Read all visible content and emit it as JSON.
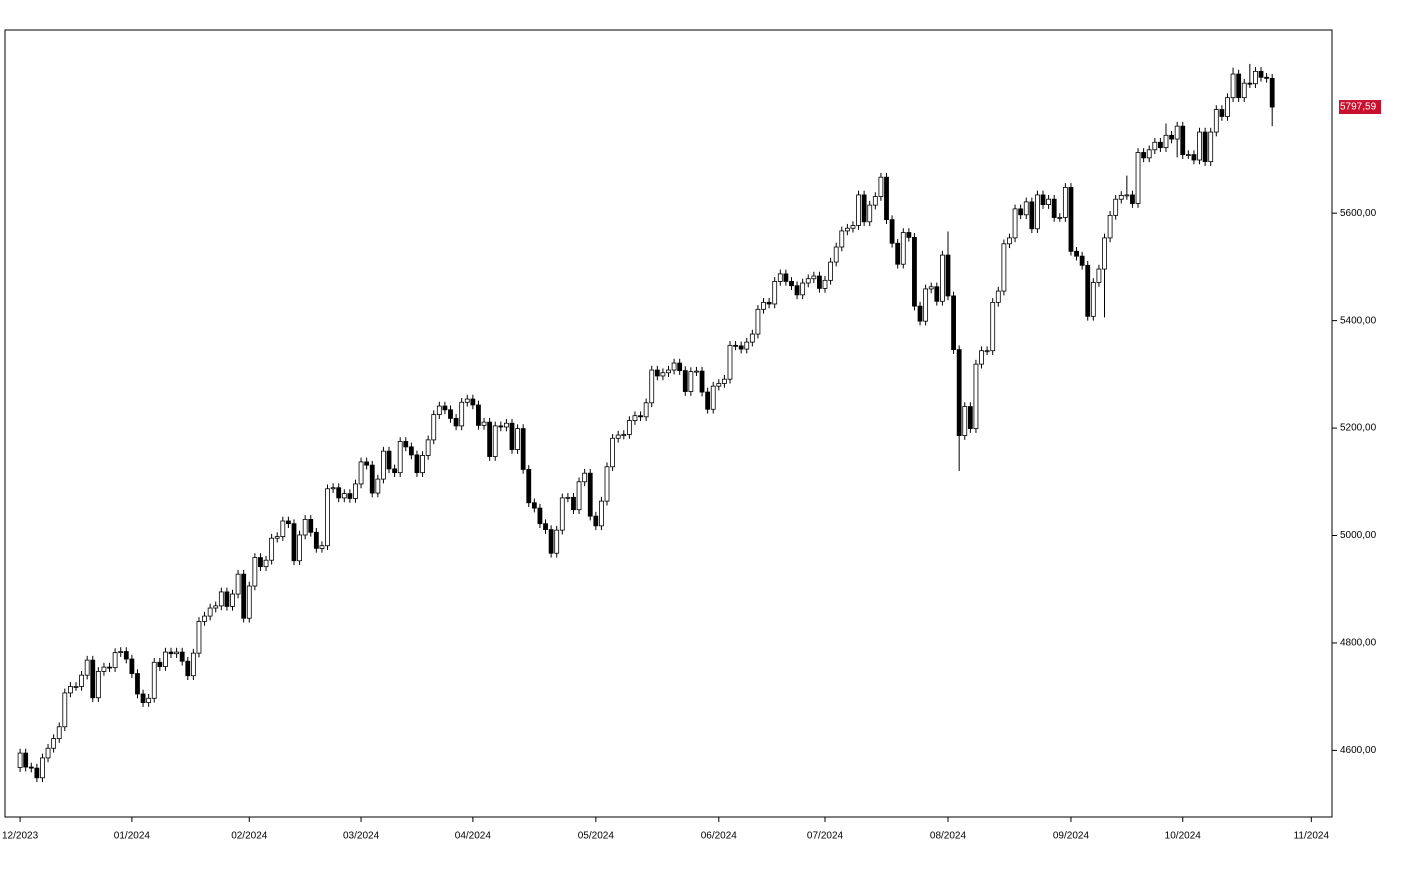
{
  "chart_data": {
    "type": "candlestick",
    "x": [
      0,
      1,
      2,
      3,
      4,
      5,
      6,
      7,
      8,
      9,
      10,
      11,
      12,
      13,
      14,
      15,
      16,
      17,
      18,
      19,
      20,
      21,
      22,
      23,
      24,
      25,
      26,
      27,
      28,
      29,
      30,
      31,
      32,
      33,
      34,
      35,
      36,
      37,
      38,
      39,
      40,
      41,
      42,
      43,
      44,
      45,
      46,
      47,
      48,
      49,
      50,
      51,
      52,
      53,
      54,
      55,
      56,
      57,
      58,
      59,
      60,
      61,
      62,
      63,
      64,
      65,
      66,
      67,
      68,
      69,
      70,
      71,
      72,
      73,
      74,
      75,
      76,
      77,
      78,
      79,
      80,
      81,
      82,
      83,
      84,
      85,
      86,
      87,
      88,
      89,
      90,
      91,
      92,
      93,
      94,
      95,
      96,
      97,
      98,
      99,
      100,
      101,
      102,
      103,
      104,
      105,
      106,
      107,
      108,
      109,
      110,
      111,
      112,
      113,
      114,
      115,
      116,
      117,
      118,
      119,
      120,
      121,
      122,
      123,
      124,
      125,
      126,
      127,
      128,
      129,
      130,
      131,
      132,
      133,
      134,
      135,
      136,
      137,
      138,
      139,
      140,
      141,
      142,
      143,
      144,
      145,
      146,
      147,
      148,
      149,
      150,
      151,
      152,
      153,
      154,
      155,
      156,
      157,
      158,
      159,
      160,
      161,
      162,
      163,
      164,
      165,
      166,
      167,
      168,
      169,
      170,
      171,
      172,
      173,
      174,
      175,
      176,
      177,
      178,
      179,
      180,
      181,
      182,
      183,
      184,
      185,
      186,
      187,
      188,
      189,
      190,
      191,
      192,
      193,
      194,
      195,
      196,
      197,
      198,
      199,
      200,
      201,
      202,
      203,
      204,
      205,
      206,
      207,
      208,
      209,
      210,
      211,
      212,
      213,
      214,
      215,
      216,
      217,
      218,
      219,
      220,
      221,
      222,
      223,
      224
    ],
    "open": [
      4568,
      4595,
      4569,
      4567,
      4549,
      4586,
      4604,
      4622,
      4644,
      4707,
      4719,
      4719,
      4740,
      4768,
      4698,
      4747,
      4755,
      4754,
      4782,
      4784,
      4770,
      4743,
      4705,
      4689,
      4697,
      4764,
      4756,
      4783,
      4780,
      4783,
      4766,
      4739,
      4781,
      4840,
      4850,
      4865,
      4869,
      4895,
      4868,
      4891,
      4928,
      4846,
      4906,
      4959,
      4942,
      4954,
      4995,
      4998,
      5027,
      5022,
      4953,
      5001,
      5030,
      5006,
      4976,
      4981,
      5087,
      5089,
      5070,
      5078,
      5069,
      5096,
      5137,
      5131,
      5079,
      5105,
      5157,
      5124,
      5117,
      5175,
      5165,
      5150,
      5117,
      5149,
      5178,
      5225,
      5241,
      5234,
      5218,
      5204,
      5248,
      5254,
      5243,
      5205,
      5211,
      5147,
      5204,
      5202,
      5209,
      5160,
      5199,
      5123,
      5061,
      5051,
      5022,
      5011,
      4967,
      5010,
      5070,
      5071,
      5048,
      5100,
      5116,
      5036,
      5018,
      5064,
      5128,
      5181,
      5187,
      5188,
      5214,
      5223,
      5221,
      5247,
      5308,
      5297,
      5303,
      5308,
      5321,
      5307,
      5268,
      5305,
      5306,
      5267,
      5235,
      5278,
      5283,
      5291,
      5354,
      5353,
      5347,
      5360,
      5375,
      5421,
      5434,
      5431,
      5473,
      5487,
      5473,
      5465,
      5448,
      5470,
      5478,
      5483,
      5460,
      5475,
      5509,
      5537,
      5567,
      5572,
      5577,
      5634,
      5584,
      5615,
      5631,
      5667,
      5588,
      5544,
      5505,
      5564,
      5555,
      5427,
      5399,
      5459,
      5463,
      5436,
      5522,
      5446,
      5346,
      5186,
      5240,
      5199,
      5319,
      5344,
      5344,
      5434,
      5455,
      5543,
      5554,
      5608,
      5597,
      5621,
      5571,
      5634,
      5616,
      5626,
      5592,
      5592,
      5648,
      5529,
      5520,
      5503,
      5408,
      5471,
      5496,
      5554,
      5596,
      5626,
      5633,
      5634,
      5618,
      5713,
      5703,
      5718,
      5732,
      5722,
      5745,
      5738,
      5762,
      5709,
      5709,
      5699,
      5751,
      5696,
      5751,
      5793,
      5780,
      5815,
      5859,
      5815,
      5842,
      5841,
      5864,
      5853,
      5851
    ],
    "high": [
      4603,
      4603,
      4577,
      4575,
      4594,
      4612,
      4630,
      4652,
      4715,
      4727,
      4727,
      4748,
      4776,
      4776,
      4755,
      4763,
      4763,
      4790,
      4792,
      4792,
      4778,
      4751,
      4713,
      4705,
      4772,
      4772,
      4791,
      4791,
      4791,
      4791,
      4774,
      4789,
      4848,
      4858,
      4873,
      4877,
      4903,
      4903,
      4899,
      4936,
      4936,
      4914,
      4967,
      4967,
      4962,
      5003,
      5006,
      5035,
      5035,
      5030,
      5009,
      5038,
      5038,
      5014,
      4989,
      5095,
      5097,
      5097,
      5086,
      5086,
      5104,
      5145,
      5145,
      5139,
      5113,
      5165,
      5165,
      5132,
      5183,
      5183,
      5173,
      5158,
      5157,
      5186,
      5233,
      5249,
      5249,
      5242,
      5226,
      5256,
      5262,
      5262,
      5251,
      5219,
      5219,
      5212,
      5212,
      5217,
      5217,
      5207,
      5207,
      5131,
      5069,
      5059,
      5030,
      5019,
      5018,
      5078,
      5079,
      5079,
      5108,
      5124,
      5124,
      5044,
      5072,
      5136,
      5189,
      5195,
      5196,
      5222,
      5231,
      5231,
      5255,
      5316,
      5316,
      5311,
      5316,
      5329,
      5329,
      5315,
      5313,
      5314,
      5314,
      5275,
      5286,
      5291,
      5299,
      5362,
      5362,
      5361,
      5368,
      5383,
      5429,
      5442,
      5442,
      5481,
      5495,
      5495,
      5481,
      5473,
      5478,
      5486,
      5491,
      5491,
      5483,
      5517,
      5545,
      5575,
      5580,
      5585,
      5642,
      5642,
      5623,
      5639,
      5675,
      5675,
      5596,
      5552,
      5572,
      5572,
      5563,
      5435,
      5467,
      5471,
      5471,
      5530,
      5566,
      5454,
      5354,
      5248,
      5248,
      5327,
      5352,
      5352,
      5442,
      5463,
      5551,
      5562,
      5616,
      5616,
      5629,
      5629,
      5642,
      5642,
      5634,
      5634,
      5600,
      5656,
      5656,
      5537,
      5528,
      5511,
      5479,
      5504,
      5562,
      5604,
      5634,
      5641,
      5670,
      5642,
      5721,
      5721,
      5726,
      5740,
      5740,
      5767,
      5753,
      5770,
      5770,
      5717,
      5717,
      5759,
      5759,
      5759,
      5801,
      5801,
      5823,
      5871,
      5867,
      5850,
      5878,
      5872,
      5872,
      5861,
      5859
    ],
    "low": [
      4560,
      4561,
      4559,
      4541,
      4541,
      4578,
      4596,
      4614,
      4636,
      4699,
      4711,
      4711,
      4732,
      4690,
      4690,
      4739,
      4746,
      4746,
      4774,
      4762,
      4735,
      4697,
      4681,
      4681,
      4689,
      4748,
      4748,
      4772,
      4772,
      4758,
      4731,
      4731,
      4773,
      4832,
      4842,
      4857,
      4861,
      4860,
      4860,
      4883,
      4838,
      4838,
      4898,
      4934,
      4934,
      4946,
      4987,
      4990,
      5014,
      4945,
      4945,
      4993,
      4998,
      4968,
      4968,
      4973,
      5079,
      5062,
      5062,
      5061,
      5061,
      5088,
      5123,
      5071,
      5071,
      5097,
      5116,
      5109,
      5109,
      5157,
      5142,
      5109,
      5109,
      5141,
      5170,
      5217,
      5226,
      5210,
      5196,
      5196,
      5240,
      5235,
      5197,
      5197,
      5139,
      5139,
      5194,
      5194,
      5152,
      5152,
      5115,
      5053,
      5043,
      5014,
      5003,
      4959,
      4959,
      5002,
      5062,
      5040,
      5040,
      5092,
      5028,
      5010,
      5010,
      5056,
      5120,
      5173,
      5179,
      5180,
      5206,
      5213,
      5213,
      5239,
      5289,
      5289,
      5295,
      5300,
      5299,
      5260,
      5260,
      5297,
      5259,
      5227,
      5227,
      5270,
      5275,
      5283,
      5345,
      5339,
      5339,
      5352,
      5367,
      5413,
      5423,
      5423,
      5465,
      5465,
      5457,
      5440,
      5440,
      5462,
      5470,
      5452,
      5452,
      5467,
      5501,
      5529,
      5559,
      5564,
      5569,
      5576,
      5576,
      5607,
      5623,
      5580,
      5536,
      5497,
      5497,
      5547,
      5419,
      5391,
      5391,
      5451,
      5428,
      5428,
      5438,
      5338,
      5120,
      5178,
      5191,
      5191,
      5311,
      5336,
      5336,
      5426,
      5447,
      5535,
      5546,
      5589,
      5589,
      5563,
      5563,
      5608,
      5608,
      5584,
      5584,
      5584,
      5521,
      5512,
      5495,
      5400,
      5400,
      5463,
      5406,
      5546,
      5588,
      5618,
      5625,
      5610,
      5610,
      5695,
      5695,
      5710,
      5714,
      5714,
      5730,
      5704,
      5701,
      5701,
      5691,
      5691,
      5688,
      5688,
      5743,
      5772,
      5772,
      5807,
      5807,
      5807,
      5833,
      5833,
      5845,
      5843,
      5762
    ],
    "close": [
      4595,
      4569,
      4567,
      4549,
      4586,
      4604,
      4622,
      4644,
      4707,
      4719,
      4719,
      4740,
      4768,
      4698,
      4747,
      4755,
      4754,
      4782,
      4784,
      4770,
      4743,
      4705,
      4689,
      4697,
      4764,
      4756,
      4783,
      4780,
      4783,
      4766,
      4739,
      4781,
      4840,
      4850,
      4865,
      4869,
      4895,
      4868,
      4891,
      4928,
      4846,
      4906,
      4959,
      4942,
      4954,
      4995,
      4998,
      5027,
      5022,
      4953,
      5001,
      5030,
      5006,
      4976,
      4981,
      5087,
      5089,
      5070,
      5078,
      5069,
      5096,
      5137,
      5131,
      5079,
      5105,
      5157,
      5124,
      5117,
      5175,
      5165,
      5150,
      5117,
      5149,
      5178,
      5225,
      5241,
      5234,
      5218,
      5204,
      5248,
      5254,
      5243,
      5205,
      5211,
      5147,
      5204,
      5202,
      5209,
      5160,
      5199,
      5123,
      5061,
      5051,
      5022,
      5011,
      4967,
      5010,
      5070,
      5071,
      5048,
      5100,
      5116,
      5036,
      5018,
      5064,
      5128,
      5181,
      5187,
      5188,
      5214,
      5223,
      5221,
      5247,
      5308,
      5297,
      5303,
      5308,
      5321,
      5307,
      5268,
      5305,
      5306,
      5267,
      5235,
      5278,
      5283,
      5291,
      5354,
      5353,
      5347,
      5360,
      5375,
      5421,
      5434,
      5431,
      5473,
      5487,
      5473,
      5465,
      5448,
      5470,
      5478,
      5483,
      5460,
      5475,
      5509,
      5537,
      5567,
      5572,
      5577,
      5634,
      5584,
      5615,
      5631,
      5667,
      5588,
      5544,
      5505,
      5564,
      5555,
      5427,
      5399,
      5459,
      5463,
      5436,
      5522,
      5446,
      5346,
      5186,
      5240,
      5199,
      5319,
      5344,
      5344,
      5434,
      5455,
      5543,
      5554,
      5608,
      5597,
      5621,
      5571,
      5634,
      5616,
      5626,
      5592,
      5592,
      5648,
      5529,
      5520,
      5503,
      5408,
      5471,
      5496,
      5554,
      5596,
      5626,
      5633,
      5634,
      5618,
      5713,
      5703,
      5718,
      5732,
      5722,
      5745,
      5738,
      5762,
      5709,
      5709,
      5699,
      5751,
      5696,
      5751,
      5793,
      5780,
      5815,
      5859,
      5815,
      5842,
      5841,
      5864,
      5853,
      5851,
      5797.59
    ],
    "up_color": "#ffffff",
    "down_color": "#000000",
    "last_price": {
      "value": 5797.59,
      "label": "5797,59"
    },
    "last_price_color": "#c8102e",
    "xlim": [
      -2.7,
      234.7
    ],
    "xticks": [
      {
        "value": 0,
        "label": "12/2023"
      },
      {
        "value": 20,
        "label": "01/2024"
      },
      {
        "value": 41,
        "label": "02/2024"
      },
      {
        "value": 61,
        "label": "03/2024"
      },
      {
        "value": 81,
        "label": "04/2024"
      },
      {
        "value": 103,
        "label": "05/2024"
      },
      {
        "value": 125,
        "label": "06/2024"
      },
      {
        "value": 144,
        "label": "07/2024"
      },
      {
        "value": 166,
        "label": "08/2024"
      },
      {
        "value": 188,
        "label": "09/2024"
      },
      {
        "value": 208,
        "label": "10/2024"
      },
      {
        "value": 231,
        "label": "11/2024"
      }
    ],
    "ylim": [
      4476,
      5941
    ],
    "yticks": [
      {
        "value": 4600,
        "label": "4600,00"
      },
      {
        "value": 4800,
        "label": "4800,00"
      },
      {
        "value": 5000,
        "label": "5000,00"
      },
      {
        "value": 5200,
        "label": "5200,00"
      },
      {
        "value": 5400,
        "label": "5400,00"
      },
      {
        "value": 5600,
        "label": "5600,00"
      }
    ],
    "grid": false
  }
}
